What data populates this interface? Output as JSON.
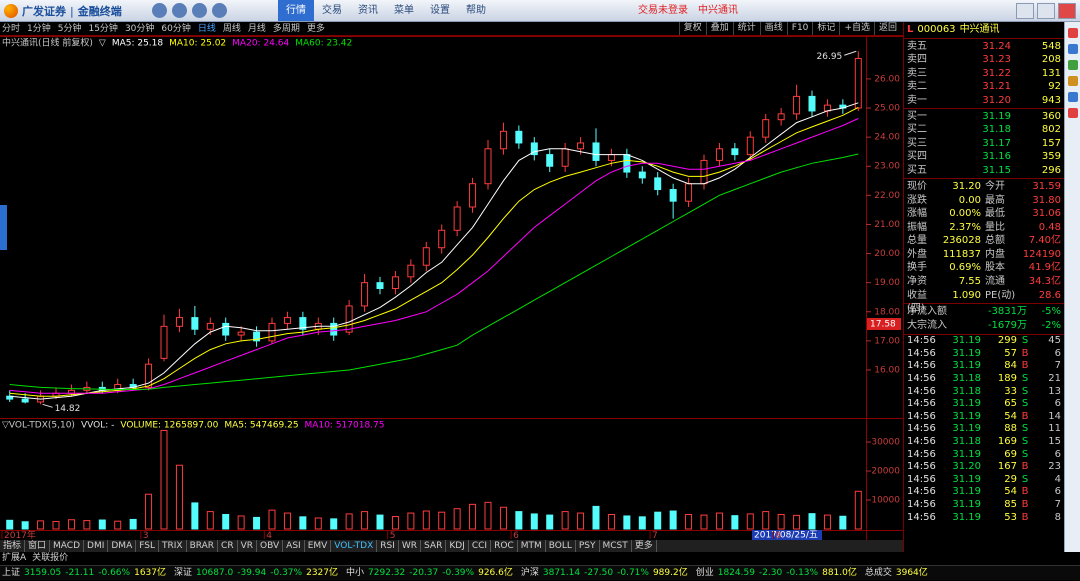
{
  "toolbar": {
    "brand": "广发证券",
    "product": "金融终端",
    "menus": [
      "行情",
      "交易",
      "资讯",
      "菜单",
      "设置",
      "帮助"
    ],
    "status": [
      "交易未登录",
      "中兴通讯"
    ]
  },
  "periods": [
    "分时",
    "1分钟",
    "5分钟",
    "15分钟",
    "30分钟",
    "60分钟",
    "日线",
    "周线",
    "月线",
    "多周期",
    "更多"
  ],
  "chart_tools": [
    "复权",
    "叠加",
    "统计",
    "画线",
    "F10",
    "标记",
    "+自选",
    "返回"
  ],
  "chart_data": [
    {
      "type": "candlestick",
      "title": "中兴通讯(日线 前复权)",
      "title_marker": "▽",
      "open": [
        15.1,
        15.0,
        14.9,
        15.1,
        15.2,
        15.3,
        15.4,
        15.3,
        15.5,
        15.4,
        16.4,
        17.5,
        17.8,
        17.4,
        17.6,
        17.2,
        17.3,
        17.0,
        17.6,
        17.8,
        17.4,
        17.6,
        17.3,
        18.2,
        19.0,
        18.8,
        19.2,
        19.6,
        20.2,
        20.8,
        21.6,
        22.4,
        23.6,
        24.2,
        23.8,
        23.4,
        23.0,
        23.6,
        23.8,
        23.2,
        23.4,
        22.8,
        22.6,
        22.2,
        21.8,
        22.4,
        23.2,
        23.6,
        23.4,
        24.0,
        24.6,
        24.8,
        25.4,
        24.9,
        25.1,
        25.0
      ],
      "high": [
        15.3,
        15.2,
        15.3,
        15.4,
        15.5,
        15.6,
        15.6,
        15.7,
        15.7,
        16.4,
        17.9,
        18.1,
        18.2,
        17.8,
        17.8,
        17.5,
        17.5,
        17.8,
        18.0,
        18.0,
        17.8,
        17.8,
        18.4,
        19.3,
        19.2,
        19.4,
        19.8,
        20.4,
        21.0,
        21.8,
        22.6,
        23.9,
        24.5,
        24.4,
        24.0,
        23.6,
        23.8,
        24.0,
        24.3,
        23.6,
        23.6,
        23.0,
        22.8,
        22.4,
        22.6,
        23.4,
        23.8,
        23.8,
        24.2,
        24.8,
        25.0,
        25.8,
        25.6,
        25.3,
        25.3,
        26.95
      ],
      "low": [
        14.9,
        14.85,
        14.82,
        15.0,
        15.1,
        15.2,
        15.2,
        15.2,
        15.3,
        15.3,
        16.3,
        17.3,
        17.2,
        17.2,
        17.0,
        17.0,
        16.8,
        16.9,
        17.4,
        17.2,
        17.2,
        17.0,
        17.2,
        18.0,
        18.6,
        18.6,
        19.0,
        19.4,
        20.0,
        20.6,
        21.4,
        22.2,
        23.4,
        23.6,
        23.2,
        22.8,
        22.8,
        23.4,
        23.0,
        23.0,
        22.6,
        22.4,
        22.0,
        21.2,
        21.6,
        22.2,
        23.0,
        23.2,
        23.2,
        23.8,
        24.4,
        24.6,
        24.7,
        24.7,
        24.8,
        24.9
      ],
      "close": [
        15.0,
        14.9,
        15.1,
        15.2,
        15.3,
        15.4,
        15.3,
        15.5,
        15.4,
        16.2,
        17.5,
        17.8,
        17.4,
        17.6,
        17.2,
        17.3,
        17.0,
        17.6,
        17.8,
        17.4,
        17.6,
        17.2,
        18.2,
        19.0,
        18.8,
        19.2,
        19.6,
        20.2,
        20.8,
        21.6,
        22.4,
        23.6,
        24.2,
        23.8,
        23.4,
        23.0,
        23.6,
        23.8,
        23.2,
        23.4,
        22.8,
        22.6,
        22.2,
        21.8,
        22.4,
        23.2,
        23.6,
        23.4,
        24.0,
        24.6,
        24.8,
        25.4,
        24.9,
        25.1,
        25.0,
        26.7
      ],
      "up_color": "#ff3c3c",
      "down_color": "#54fcfc",
      "series": [
        {
          "name": "MA5: 25.18",
          "color": "#ffffff",
          "values": [
            15.1,
            15.05,
            15.0,
            15.05,
            15.1,
            15.2,
            15.3,
            15.35,
            15.4,
            15.55,
            15.9,
            16.4,
            16.9,
            17.3,
            17.5,
            17.45,
            17.35,
            17.35,
            17.4,
            17.45,
            17.5,
            17.5,
            17.65,
            17.9,
            18.15,
            18.5,
            18.9,
            19.35,
            19.7,
            20.3,
            20.9,
            21.7,
            22.5,
            23.2,
            23.5,
            23.6,
            23.6,
            23.5,
            23.4,
            23.4,
            23.4,
            23.2,
            22.9,
            22.6,
            22.4,
            22.4,
            22.6,
            22.9,
            23.3,
            23.7,
            24.1,
            24.5,
            24.7,
            24.9,
            25.0,
            25.18
          ]
        },
        {
          "name": "MA10: 25.02",
          "color": "#ffff00",
          "values": [
            15.2,
            15.15,
            15.1,
            15.1,
            15.15,
            15.2,
            15.25,
            15.3,
            15.35,
            15.45,
            15.7,
            16.05,
            16.4,
            16.7,
            16.9,
            17.0,
            17.05,
            17.15,
            17.25,
            17.3,
            17.4,
            17.45,
            17.55,
            17.7,
            17.9,
            18.1,
            18.4,
            18.7,
            19.0,
            19.45,
            19.95,
            20.55,
            21.2,
            21.8,
            22.2,
            22.45,
            22.65,
            22.8,
            22.95,
            23.1,
            23.2,
            23.15,
            23.0,
            22.8,
            22.65,
            22.65,
            22.8,
            23.0,
            23.25,
            23.55,
            23.85,
            24.15,
            24.35,
            24.55,
            24.75,
            25.02
          ]
        },
        {
          "name": "MA20: 24.64",
          "color": "#ff00ff",
          "values": [
            15.3,
            15.25,
            15.2,
            15.2,
            15.2,
            15.2,
            15.2,
            15.25,
            15.3,
            15.35,
            15.5,
            15.7,
            15.9,
            16.1,
            16.3,
            16.5,
            16.7,
            16.9,
            17.1,
            17.2,
            17.3,
            17.35,
            17.4,
            17.5,
            17.6,
            17.7,
            17.85,
            18.0,
            18.3,
            18.6,
            19.0,
            19.4,
            19.9,
            20.4,
            20.9,
            21.3,
            21.7,
            22.1,
            22.5,
            22.8,
            23.0,
            23.1,
            23.1,
            23.0,
            22.9,
            22.9,
            23.0,
            23.1,
            23.2,
            23.4,
            23.6,
            23.8,
            24.0,
            24.2,
            24.4,
            24.64
          ]
        },
        {
          "name": "MA60: 23.42",
          "color": "#00e000",
          "values": [
            15.5,
            15.45,
            15.4,
            15.38,
            15.36,
            15.35,
            15.34,
            15.33,
            15.33,
            15.34,
            15.4,
            15.45,
            15.5,
            15.55,
            15.6,
            15.65,
            15.7,
            15.75,
            15.8,
            15.85,
            15.9,
            15.95,
            16.0,
            16.1,
            16.2,
            16.3,
            16.4,
            16.55,
            16.7,
            16.85,
            17.2,
            17.5,
            17.8,
            18.1,
            18.4,
            18.7,
            19.0,
            19.3,
            19.6,
            19.9,
            20.2,
            20.5,
            20.8,
            21.1,
            21.4,
            21.7,
            22.0,
            22.2,
            22.4,
            22.6,
            22.8,
            22.95,
            23.1,
            23.2,
            23.3,
            23.42
          ]
        }
      ],
      "ylim": [
        14.35,
        27.2
      ],
      "yticks": [
        {
          "value": 16,
          "label": "16.00"
        },
        {
          "value": 17,
          "label": "17.00"
        },
        {
          "value": 18,
          "label": "18.00"
        },
        {
          "value": 19,
          "label": "19.00"
        },
        {
          "value": 20,
          "label": "20.00"
        },
        {
          "value": 21,
          "label": "21.00"
        },
        {
          "value": 22,
          "label": "22.00"
        },
        {
          "value": 23,
          "label": "23.00"
        },
        {
          "value": 24,
          "label": "24.00"
        },
        {
          "value": 25,
          "label": "25.00"
        },
        {
          "value": 26,
          "label": "26.00"
        }
      ],
      "cursor": 17.58,
      "cursor_date": "2017/08/25/五"
    },
    {
      "type": "bar",
      "title": "▽VOL-TDX(5,10)",
      "legend": [
        {
          "text": "VVOL: -",
          "color": "#e0e0e0"
        },
        {
          "text": "VOLUME: 1265897.00",
          "color": "#ffff40"
        },
        {
          "text": "MA5: 547469.25",
          "color": "#ffff40"
        },
        {
          "text": "MA10: 517018.75",
          "color": "#ff00ff"
        }
      ],
      "categories": [
        "2017年",
        null,
        null,
        null,
        null,
        null,
        null,
        null,
        null,
        "3",
        null,
        null,
        null,
        null,
        null,
        null,
        null,
        "4",
        null,
        null,
        null,
        null,
        null,
        null,
        null,
        "5",
        null,
        null,
        null,
        null,
        null,
        null,
        null,
        "6",
        null,
        null,
        null,
        null,
        null,
        null,
        null,
        null,
        "7",
        null,
        null,
        null,
        null,
        null,
        null,
        null,
        "8",
        null,
        null,
        null,
        null,
        null
      ],
      "values": [
        3000,
        2500,
        2800,
        2600,
        3200,
        2900,
        3100,
        2700,
        3300,
        12000,
        34000,
        22000,
        9000,
        6000,
        5000,
        4500,
        4000,
        6500,
        5500,
        4200,
        3800,
        3500,
        5200,
        6000,
        4800,
        4300,
        5500,
        6200,
        5800,
        7000,
        8500,
        9200,
        7500,
        6000,
        5200,
        4800,
        6000,
        5500,
        7800,
        5000,
        4500,
        4200,
        5800,
        6200,
        5000,
        4800,
        5500,
        4600,
        5200,
        6000,
        5000,
        4700,
        5300,
        4800,
        4400,
        13000
      ],
      "ylim": [
        0,
        37600
      ],
      "yticks": [
        10000,
        20000,
        30000
      ]
    }
  ],
  "indicator_tabs": [
    "指标",
    "窗口",
    "MACD",
    "DMI",
    "DMA",
    "FSL",
    "TRIX",
    "BRAR",
    "CR",
    "VR",
    "OBV",
    "ASI",
    "EMV",
    "VOL-TDX",
    "RSI",
    "WR",
    "SAR",
    "KDJ",
    "CCI",
    "ROC",
    "MTM",
    "BOLL",
    "PSY",
    "MCST",
    "更多"
  ],
  "sub_tabs": [
    "扩展A",
    "关联报价"
  ],
  "status_bar": [
    {
      "name": "上证",
      "value": "3159.05",
      "change": "-21.11",
      "pct": "-0.66%",
      "amount": "1637亿"
    },
    {
      "name": "深证",
      "value": "10687.0",
      "change": "-39.94",
      "pct": "-0.37%",
      "amount": "2327亿"
    },
    {
      "name": "中小",
      "value": "7292.32",
      "change": "-20.37",
      "pct": "-0.39%",
      "amount": "926.6亿"
    },
    {
      "name": "沪深",
      "value": "3871.14",
      "change": "-27.50",
      "pct": "-0.71%",
      "amount": "989.2亿"
    },
    {
      "name": "创业",
      "value": "1824.59",
      "change": "-2.30",
      "pct": "-0.13%",
      "amount": "881.0亿"
    },
    {
      "name": "总成交",
      "amount": "3964亿"
    }
  ],
  "quote": {
    "market": "L",
    "code": "000063",
    "name": "中兴通讯",
    "asks": [
      {
        "label": "卖五",
        "price": "31.24",
        "volume": "548"
      },
      {
        "label": "卖四",
        "price": "31.23",
        "volume": "208"
      },
      {
        "label": "卖三",
        "price": "31.22",
        "volume": "131"
      },
      {
        "label": "卖二",
        "price": "31.21",
        "volume": "92"
      },
      {
        "label": "卖一",
        "price": "31.20",
        "volume": "943"
      }
    ],
    "bids": [
      {
        "label": "买一",
        "price": "31.19",
        "volume": "360"
      },
      {
        "label": "买二",
        "price": "31.18",
        "volume": "802"
      },
      {
        "label": "买三",
        "price": "31.17",
        "volume": "157"
      },
      {
        "label": "买四",
        "price": "31.16",
        "volume": "359"
      },
      {
        "label": "买五",
        "price": "31.15",
        "volume": "296"
      }
    ],
    "stats": [
      [
        "现价",
        "31.20",
        "今开",
        "31.59"
      ],
      [
        "涨跌",
        "0.00",
        "最高",
        "31.80"
      ],
      [
        "涨幅",
        "0.00%",
        "最低",
        "31.06"
      ],
      [
        "振幅",
        "2.37%",
        "量比",
        "0.48"
      ],
      [
        "总量",
        "236028",
        "总额",
        "7.40亿"
      ],
      [
        "外盘",
        "111837",
        "内盘",
        "124190"
      ],
      [
        "换手",
        "0.69%",
        "股本",
        "41.9亿"
      ],
      [
        "净资",
        "7.55",
        "流通",
        "34.3亿"
      ],
      [
        "收益(四)",
        "1.090",
        "PE(动)",
        "28.6"
      ]
    ],
    "flows": [
      [
        "净流入额",
        "-3831万",
        "-5%"
      ],
      [
        "大宗流入",
        "-1679万",
        "-2%"
      ]
    ],
    "trades": [
      [
        "14:56",
        "31.19",
        "299",
        "S",
        "45"
      ],
      [
        "14:56",
        "31.19",
        "57",
        "B",
        "6"
      ],
      [
        "14:56",
        "31.19",
        "84",
        "B",
        "7"
      ],
      [
        "14:56",
        "31.18",
        "189",
        "S",
        "21"
      ],
      [
        "14:56",
        "31.18",
        "33",
        "S",
        "13"
      ],
      [
        "14:56",
        "31.19",
        "65",
        "S",
        "6"
      ],
      [
        "14:56",
        "31.19",
        "54",
        "B",
        "14"
      ],
      [
        "14:56",
        "31.19",
        "88",
        "S",
        "11"
      ],
      [
        "14:56",
        "31.18",
        "169",
        "S",
        "15"
      ],
      [
        "14:56",
        "31.19",
        "69",
        "S",
        "6"
      ],
      [
        "14:56",
        "31.20",
        "167",
        "B",
        "23"
      ],
      [
        "14:56",
        "31.19",
        "29",
        "S",
        "4"
      ],
      [
        "14:56",
        "31.19",
        "54",
        "B",
        "6"
      ],
      [
        "14:56",
        "31.19",
        "85",
        "B",
        "7"
      ],
      [
        "14:56",
        "31.19",
        "53",
        "B",
        "8"
      ]
    ]
  }
}
